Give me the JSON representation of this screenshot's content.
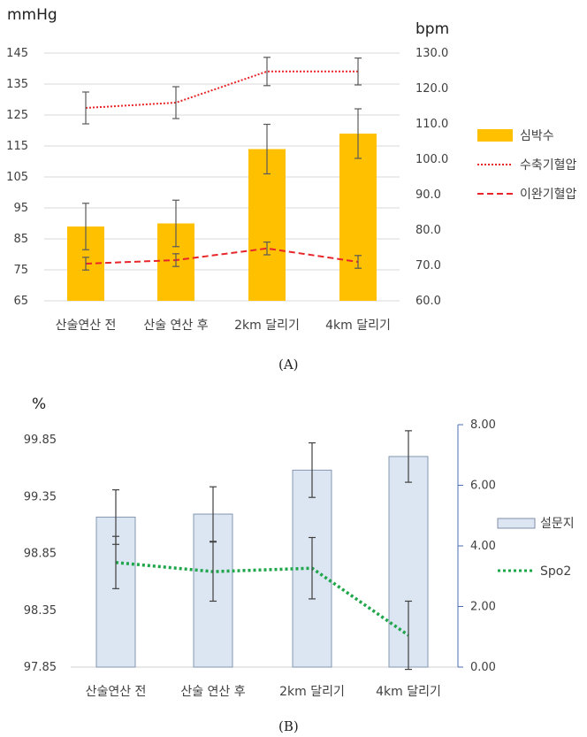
{
  "chart_data": [
    {
      "type": "bar",
      "caption": "(A)",
      "left_unit": "mmHg",
      "right_unit": "bpm",
      "categories": [
        "산술연산 전",
        "산술 연산 후",
        "2km 달리기",
        "4km 달리기"
      ],
      "left_ticks": [
        "145",
        "135",
        "125",
        "115",
        "105",
        "95",
        "85",
        "75",
        "65"
      ],
      "right_ticks": [
        "130.0",
        "120.0",
        "110.0",
        "100.0",
        "90.0",
        "80.0",
        "70.0",
        "60.0"
      ],
      "ylim_left": [
        65,
        145
      ],
      "ylim_right": [
        60,
        130
      ],
      "grid": true,
      "legend_position": "right",
      "series": [
        {
          "name": "심박수",
          "kind": "bar",
          "axis": "left",
          "color": "#FFC000",
          "values": [
            89,
            90,
            114,
            119
          ],
          "err": [
            7.5,
            7.5,
            8,
            8
          ]
        },
        {
          "name": "수축기혈압",
          "kind": "line-dotted",
          "axis": "right",
          "color": "#E8262A",
          "values": [
            114.5,
            116,
            124.8,
            124.8
          ],
          "err": [
            4.5,
            4.5,
            4,
            3.8
          ]
        },
        {
          "name": "이완기혈압",
          "kind": "line-dashed",
          "axis": "right",
          "color": "#E8262A",
          "values": [
            70.5,
            71.5,
            74.8,
            71
          ],
          "err": [
            1.8,
            1.8,
            1.8,
            1.8
          ]
        }
      ]
    },
    {
      "type": "bar",
      "caption": "(B)",
      "left_unit": "%",
      "categories": [
        "산술연산 전",
        "산술 연산 후",
        "2km 달리기",
        "4km 달리기"
      ],
      "left_ticks": [
        "99.85",
        "99.35",
        "98.85",
        "98.35",
        "97.85"
      ],
      "right_ticks": [
        "8.00",
        "6.00",
        "4.00",
        "2.00",
        "0.00"
      ],
      "ylim_left": [
        97.85,
        99.85
      ],
      "ylim_right": [
        0,
        8
      ],
      "grid": false,
      "legend_position": "right",
      "series": [
        {
          "name": "설문지",
          "kind": "bar",
          "axis": "right",
          "color": "#DCE6F2",
          "values": [
            4.95,
            5.05,
            6.5,
            6.95
          ],
          "err": [
            0.9,
            0.9,
            0.9,
            0.85
          ]
        },
        {
          "name": "Spo2",
          "kind": "line-dotted",
          "axis": "left",
          "color": "#1FA64A",
          "values": [
            98.77,
            98.69,
            98.72,
            98.13
          ],
          "err": [
            0.23,
            0.26,
            0.27,
            0.3
          ]
        }
      ]
    }
  ]
}
